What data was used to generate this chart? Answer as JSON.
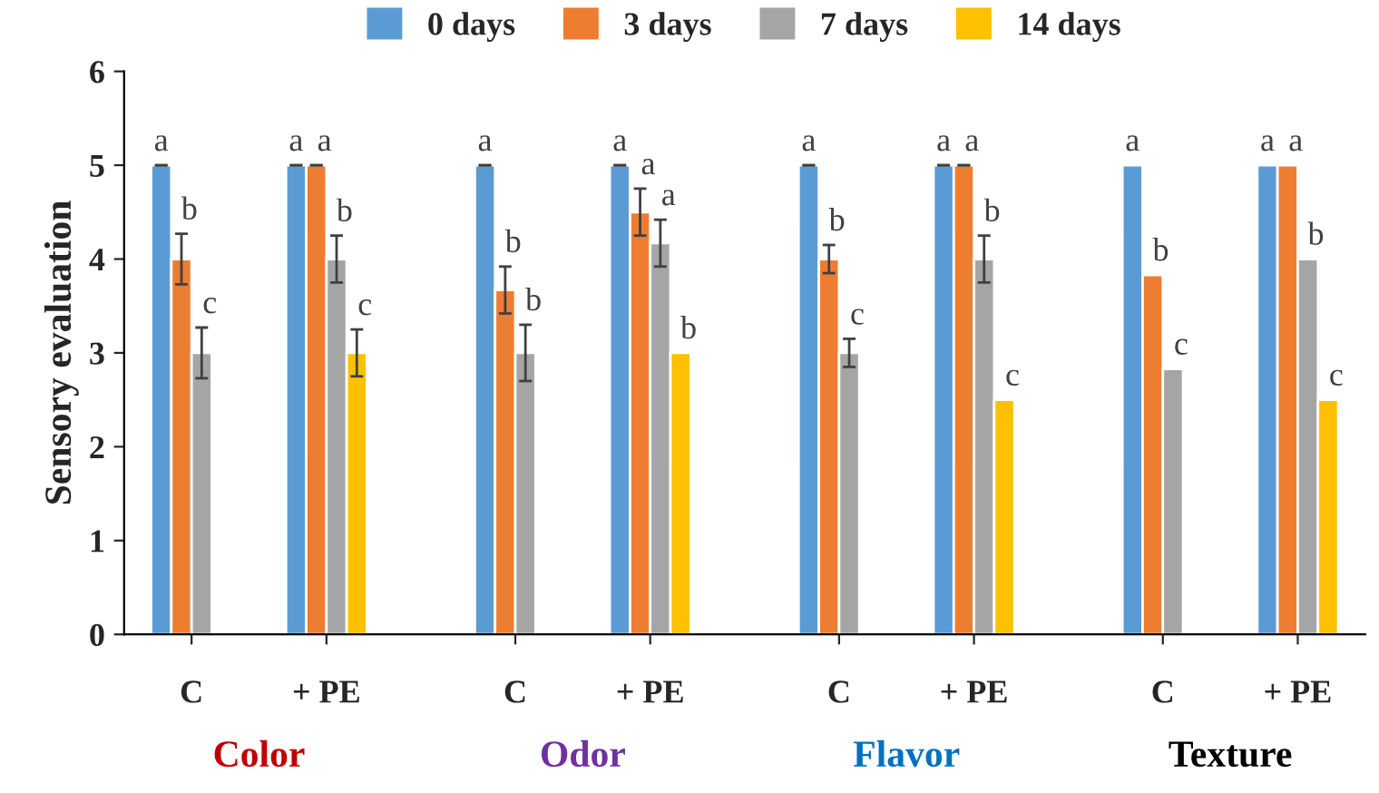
{
  "chart_data": {
    "type": "bar",
    "ylabel": "Sensory evaluation",
    "categories": [
      "C",
      "+ PE",
      "C",
      "+ PE",
      "C",
      "+ PE",
      "C",
      "+ PE"
    ],
    "ylim": [
      0,
      6
    ],
    "yticks": [
      0,
      1,
      2,
      3,
      4,
      5,
      6
    ],
    "grid": false,
    "legend": "top",
    "series": [
      {
        "name": "0 days",
        "color": "#5b9bd5",
        "values": [
          5,
          5,
          5,
          5,
          5,
          5,
          5,
          5
        ],
        "errors": [
          0,
          0,
          0,
          0,
          0,
          0,
          null,
          null
        ],
        "value_labels": [
          "a",
          "a",
          "a",
          "a",
          "a",
          "a",
          "a",
          "a"
        ]
      },
      {
        "name": "3 days",
        "color": "#ed7d31",
        "values": [
          4,
          5,
          3.67,
          4.5,
          4,
          5,
          3.83,
          5
        ],
        "errors": [
          0.27,
          0,
          0.25,
          0.25,
          0.15,
          0,
          null,
          null
        ],
        "value_labels": [
          "b",
          "a",
          "b",
          "a",
          "b",
          "a",
          "b",
          "a"
        ]
      },
      {
        "name": "7 days",
        "color": "#a5a5a5",
        "values": [
          3,
          4,
          3,
          4.17,
          3,
          4,
          2.83,
          4
        ],
        "errors": [
          0.27,
          0.25,
          0.3,
          0.25,
          0.15,
          0.25,
          null,
          null
        ],
        "value_labels": [
          "c",
          "b",
          "b",
          "a",
          "c",
          "b",
          "c",
          "b"
        ]
      },
      {
        "name": "14 days",
        "color": "#ffc000",
        "values": [
          null,
          3,
          null,
          3,
          null,
          2.5,
          null,
          2.5
        ],
        "errors": [
          null,
          0.25,
          null,
          null,
          null,
          null,
          null,
          null
        ],
        "value_labels": [
          null,
          "c",
          null,
          "b",
          null,
          "c",
          null,
          "c"
        ]
      }
    ],
    "annotations": [
      "Color",
      "Odor",
      "Flavor",
      "Texture"
    ]
  }
}
